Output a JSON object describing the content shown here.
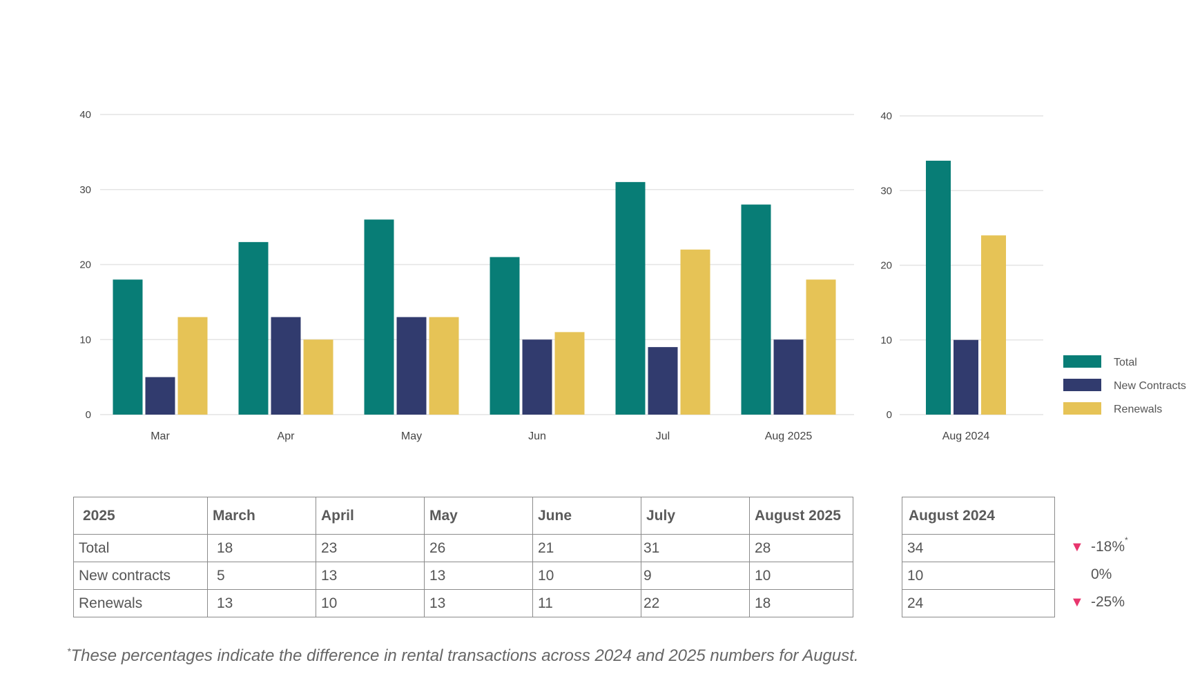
{
  "chart_data": [
    {
      "type": "bar",
      "categories": [
        "Mar",
        "Apr",
        "May",
        "Jun",
        "Jul",
        "Aug 2025"
      ],
      "series": [
        {
          "name": "Total",
          "values": [
            18,
            23,
            26,
            21,
            31,
            28
          ],
          "color": "#087d76"
        },
        {
          "name": "New Contracts",
          "values": [
            5,
            13,
            13,
            10,
            9,
            10
          ],
          "color": "#313b6e"
        },
        {
          "name": "Renewals",
          "values": [
            13,
            10,
            13,
            11,
            22,
            18
          ],
          "color": "#e6c356"
        }
      ],
      "yticks": [
        0,
        10,
        20,
        30,
        40
      ],
      "ylim": [
        0,
        40
      ],
      "grid": true
    },
    {
      "type": "bar",
      "categories": [
        "Aug 2024"
      ],
      "series": [
        {
          "name": "Total",
          "values": [
            34
          ],
          "color": "#087d76"
        },
        {
          "name": "New Contracts",
          "values": [
            10
          ],
          "color": "#313b6e"
        },
        {
          "name": "Renewals",
          "values": [
            24
          ],
          "color": "#e6c356"
        }
      ],
      "yticks": [
        0,
        10,
        20,
        30,
        40
      ],
      "ylim": [
        0,
        40
      ],
      "grid": true,
      "legend": "right"
    }
  ],
  "legend": [
    {
      "label": "Total",
      "color": "#087d76"
    },
    {
      "label": "New Contracts",
      "color": "#313b6e"
    },
    {
      "label": "Renewals",
      "color": "#e6c356"
    }
  ],
  "table_2025": {
    "headers": [
      "2025",
      "March",
      "April",
      "May",
      "June",
      "July",
      "August 2025"
    ],
    "rows": [
      [
        "Total",
        "18",
        "23",
        "26",
        "21",
        "31",
        "28"
      ],
      [
        "New contracts",
        "5",
        "13",
        "13",
        "10",
        "9",
        "10"
      ],
      [
        "Renewals",
        "13",
        "10",
        "13",
        "11",
        "22",
        "18"
      ]
    ]
  },
  "table_2024": {
    "header": "August 2024",
    "values": [
      "34",
      "10",
      "24"
    ]
  },
  "changes": [
    {
      "text": "-18%",
      "arrow": "▼",
      "note": "*"
    },
    {
      "text": "0%",
      "arrow": "",
      "note": ""
    },
    {
      "text": "-25%",
      "arrow": "▼",
      "note": ""
    }
  ],
  "footnote": {
    "marker": "*",
    "text": "These percentages indicate the difference in rental transactions across 2024 and 2025 numbers for August."
  }
}
